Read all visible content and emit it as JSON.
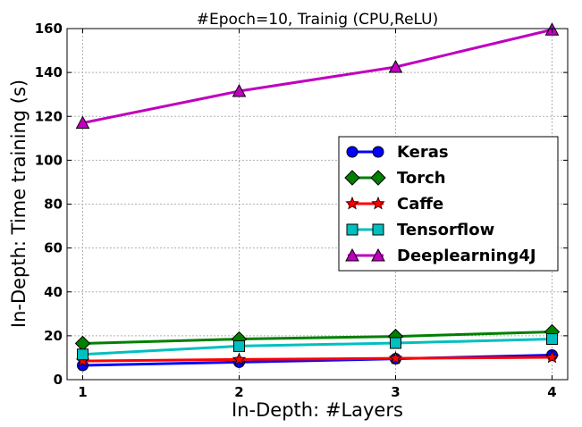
{
  "chart_data": {
    "type": "line",
    "title": "#Epoch=10, Trainig (CPU,ReLU)",
    "xlabel": "In-Depth: #Layers",
    "ylabel": "In-Depth: Time training (s)",
    "x": [
      1,
      2,
      3,
      4
    ],
    "xticks": [
      "1",
      "2",
      "3",
      "4"
    ],
    "xlim": [
      0.9,
      4.1
    ],
    "ylim": [
      0,
      160
    ],
    "yticks": [
      "0",
      "20",
      "40",
      "60",
      "80",
      "100",
      "120",
      "140",
      "160"
    ],
    "grid": true,
    "legend_position": "center-right",
    "series": [
      {
        "name": "Keras",
        "values": [
          6.5,
          8.0,
          9.5,
          11.2
        ],
        "color": "#0000ff",
        "marker": "circle"
      },
      {
        "name": "Torch",
        "values": [
          16.5,
          18.5,
          19.7,
          21.8
        ],
        "color": "#008000",
        "marker": "diamond"
      },
      {
        "name": "Caffe",
        "values": [
          8.5,
          9.2,
          9.7,
          10.2
        ],
        "color": "#ff0000",
        "marker": "star"
      },
      {
        "name": "Tensorflow",
        "values": [
          11.5,
          15.3,
          16.7,
          18.5
        ],
        "color": "#00bfbf",
        "marker": "square"
      },
      {
        "name": "Deeplearning4J",
        "values": [
          117,
          131.5,
          142.5,
          159.5
        ],
        "color": "#bf00bf",
        "marker": "triangle"
      }
    ]
  }
}
